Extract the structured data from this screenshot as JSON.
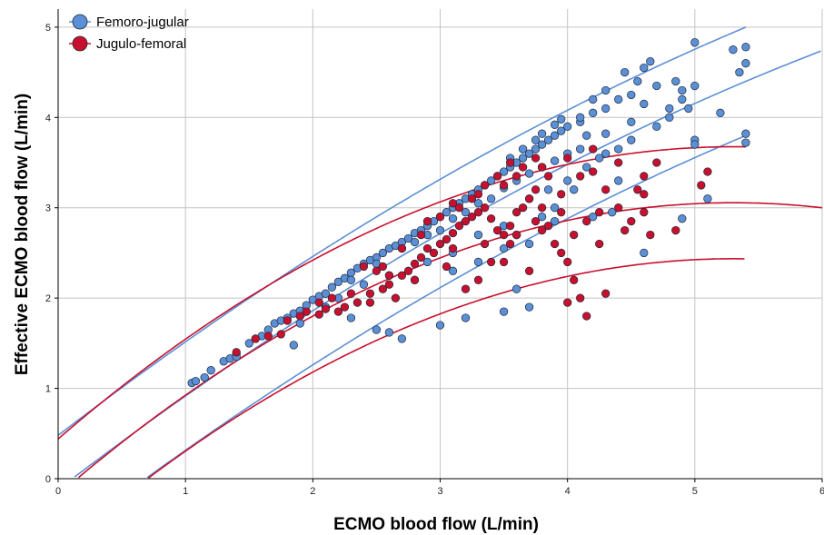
{
  "chart_data": {
    "type": "scatter",
    "xlabel": "ECMO blood flow (L/min)",
    "ylabel": "Effective ECMO blood flow (L/min)",
    "xlim": [
      0,
      6
    ],
    "ylim": [
      0,
      5.2
    ],
    "x_ticks": [
      "0",
      "1",
      "2",
      "3",
      "4",
      "5",
      "6"
    ],
    "y_ticks": [
      "0",
      "1",
      "2",
      "3",
      "4",
      "5"
    ],
    "grid": true,
    "legend_position": "top-left",
    "series": [
      {
        "name": "Femoro-jugular",
        "color": "#5B8FD6",
        "points": [
          [
            1.05,
            1.06
          ],
          [
            1.08,
            1.08
          ],
          [
            1.15,
            1.12
          ],
          [
            1.2,
            1.2
          ],
          [
            1.3,
            1.3
          ],
          [
            1.35,
            1.33
          ],
          [
            1.4,
            1.38
          ],
          [
            1.5,
            1.5
          ],
          [
            1.55,
            1.55
          ],
          [
            1.6,
            1.58
          ],
          [
            1.65,
            1.65
          ],
          [
            1.7,
            1.72
          ],
          [
            1.75,
            1.75
          ],
          [
            1.8,
            1.78
          ],
          [
            1.85,
            1.83
          ],
          [
            1.9,
            1.86
          ],
          [
            1.95,
            1.92
          ],
          [
            2.0,
            1.98
          ],
          [
            2.05,
            2.02
          ],
          [
            2.1,
            2.05
          ],
          [
            2.15,
            2.12
          ],
          [
            2.2,
            2.18
          ],
          [
            2.25,
            2.22
          ],
          [
            2.3,
            2.28
          ],
          [
            2.35,
            2.33
          ],
          [
            2.4,
            2.38
          ],
          [
            2.45,
            2.42
          ],
          [
            2.5,
            2.45
          ],
          [
            2.55,
            2.5
          ],
          [
            2.6,
            2.55
          ],
          [
            2.65,
            2.58
          ],
          [
            2.7,
            2.62
          ],
          [
            2.75,
            2.66
          ],
          [
            2.8,
            2.72
          ],
          [
            2.85,
            2.75
          ],
          [
            2.9,
            2.8
          ],
          [
            2.95,
            2.85
          ],
          [
            3.0,
            2.9
          ],
          [
            3.05,
            2.95
          ],
          [
            3.1,
            3.0
          ],
          [
            3.15,
            3.05
          ],
          [
            3.2,
            3.1
          ],
          [
            3.25,
            3.15
          ],
          [
            3.3,
            3.2
          ],
          [
            3.35,
            3.25
          ],
          [
            3.4,
            3.3
          ],
          [
            3.45,
            3.35
          ],
          [
            3.5,
            3.4
          ],
          [
            3.55,
            3.45
          ],
          [
            3.6,
            3.5
          ],
          [
            3.65,
            3.55
          ],
          [
            3.7,
            3.6
          ],
          [
            3.75,
            3.65
          ],
          [
            3.8,
            3.7
          ],
          [
            3.85,
            3.75
          ],
          [
            3.9,
            3.8
          ],
          [
            3.95,
            3.85
          ],
          [
            4.0,
            3.9
          ],
          [
            4.1,
            3.95
          ],
          [
            4.2,
            4.05
          ],
          [
            4.3,
            4.1
          ],
          [
            4.4,
            4.2
          ],
          [
            4.5,
            4.25
          ],
          [
            4.55,
            4.4
          ],
          [
            4.6,
            4.55
          ],
          [
            4.65,
            4.62
          ],
          [
            4.8,
            4.1
          ],
          [
            4.9,
            4.3
          ],
          [
            5.0,
            4.83
          ],
          [
            5.0,
            4.35
          ],
          [
            5.0,
            3.75
          ],
          [
            5.0,
            3.7
          ],
          [
            5.2,
            4.05
          ],
          [
            5.3,
            4.75
          ],
          [
            5.4,
            4.78
          ],
          [
            5.4,
            4.6
          ],
          [
            5.35,
            4.5
          ],
          [
            5.4,
            3.82
          ],
          [
            5.4,
            3.72
          ],
          [
            5.1,
            3.1
          ],
          [
            4.9,
            2.88
          ],
          [
            4.6,
            2.5
          ],
          [
            4.4,
            3.3
          ],
          [
            4.3,
            3.6
          ],
          [
            4.15,
            3.45
          ],
          [
            4.05,
            3.2
          ],
          [
            3.9,
            3.0
          ],
          [
            3.8,
            2.9
          ],
          [
            3.7,
            2.6
          ],
          [
            3.6,
            2.1
          ],
          [
            3.5,
            1.85
          ],
          [
            3.7,
            1.9
          ],
          [
            3.2,
            1.78
          ],
          [
            3.0,
            1.7
          ],
          [
            2.7,
            1.55
          ],
          [
            2.6,
            1.62
          ],
          [
            2.5,
            1.65
          ],
          [
            2.3,
            1.78
          ],
          [
            2.1,
            1.9
          ],
          [
            1.9,
            1.72
          ],
          [
            1.85,
            1.48
          ],
          [
            1.4,
            1.35
          ],
          [
            2.8,
            2.2
          ],
          [
            3.1,
            2.3
          ],
          [
            3.3,
            2.4
          ],
          [
            3.5,
            2.55
          ],
          [
            3.6,
            2.7
          ],
          [
            3.9,
            2.85
          ],
          [
            4.2,
            2.9
          ],
          [
            4.35,
            2.95
          ],
          [
            2.2,
            2.0
          ],
          [
            2.4,
            2.15
          ],
          [
            2.6,
            2.25
          ],
          [
            2.9,
            2.4
          ],
          [
            3.1,
            2.5
          ],
          [
            3.3,
            2.7
          ],
          [
            3.5,
            2.8
          ],
          [
            3.7,
            3.1
          ],
          [
            3.85,
            3.2
          ],
          [
            4.0,
            3.3
          ],
          [
            4.25,
            3.55
          ],
          [
            4.4,
            3.65
          ],
          [
            4.5,
            3.75
          ],
          [
            4.7,
            3.9
          ],
          [
            4.8,
            4.0
          ],
          [
            4.95,
            4.1
          ],
          [
            4.6,
            4.15
          ],
          [
            4.7,
            4.35
          ],
          [
            4.85,
            4.4
          ],
          [
            4.9,
            4.2
          ],
          [
            2.3,
            2.2
          ],
          [
            2.5,
            2.38
          ],
          [
            2.7,
            2.55
          ],
          [
            2.9,
            2.7
          ],
          [
            3.1,
            2.88
          ],
          [
            3.3,
            3.05
          ],
          [
            3.5,
            3.22
          ],
          [
            3.7,
            3.38
          ],
          [
            3.9,
            3.52
          ],
          [
            4.1,
            3.65
          ],
          [
            4.3,
            3.82
          ],
          [
            4.5,
            3.95
          ],
          [
            4.15,
            3.8
          ],
          [
            4.0,
            3.6
          ],
          [
            3.8,
            3.45
          ],
          [
            3.6,
            3.3
          ],
          [
            3.4,
            3.1
          ],
          [
            3.2,
            2.95
          ],
          [
            3.0,
            2.75
          ],
          [
            2.8,
            2.62
          ],
          [
            4.45,
            4.5
          ],
          [
            4.3,
            4.3
          ],
          [
            4.2,
            4.2
          ],
          [
            4.1,
            4.0
          ],
          [
            3.95,
            3.98
          ],
          [
            3.9,
            3.92
          ],
          [
            3.8,
            3.82
          ],
          [
            3.75,
            3.75
          ],
          [
            3.65,
            3.65
          ],
          [
            3.55,
            3.55
          ]
        ]
      },
      {
        "name": "Jugulo-femoral",
        "color": "#C8102E",
        "points": [
          [
            1.4,
            1.4
          ],
          [
            1.55,
            1.55
          ],
          [
            1.65,
            1.58
          ],
          [
            1.75,
            1.6
          ],
          [
            1.8,
            1.75
          ],
          [
            1.9,
            1.8
          ],
          [
            1.95,
            1.85
          ],
          [
            2.05,
            1.82
          ],
          [
            2.1,
            1.88
          ],
          [
            2.2,
            1.85
          ],
          [
            2.25,
            1.9
          ],
          [
            2.35,
            1.95
          ],
          [
            2.45,
            2.05
          ],
          [
            2.55,
            2.1
          ],
          [
            2.65,
            2.0
          ],
          [
            2.7,
            2.25
          ],
          [
            2.75,
            2.3
          ],
          [
            2.8,
            2.38
          ],
          [
            2.85,
            2.45
          ],
          [
            2.9,
            2.55
          ],
          [
            2.95,
            2.5
          ],
          [
            3.0,
            2.6
          ],
          [
            3.05,
            2.65
          ],
          [
            3.1,
            2.72
          ],
          [
            3.15,
            2.8
          ],
          [
            3.2,
            2.85
          ],
          [
            3.25,
            2.9
          ],
          [
            3.3,
            2.95
          ],
          [
            3.35,
            3.0
          ],
          [
            3.4,
            2.88
          ],
          [
            3.45,
            2.75
          ],
          [
            3.5,
            2.7
          ],
          [
            3.55,
            2.8
          ],
          [
            3.6,
            2.95
          ],
          [
            3.65,
            3.0
          ],
          [
            3.7,
            3.1
          ],
          [
            3.75,
            3.2
          ],
          [
            3.8,
            3.0
          ],
          [
            3.85,
            2.8
          ],
          [
            3.9,
            2.6
          ],
          [
            3.95,
            2.5
          ],
          [
            4.0,
            2.4
          ],
          [
            4.05,
            2.2
          ],
          [
            4.1,
            2.0
          ],
          [
            4.15,
            1.8
          ],
          [
            4.3,
            2.05
          ],
          [
            4.0,
            1.95
          ],
          [
            3.7,
            2.3
          ],
          [
            3.5,
            2.4
          ],
          [
            3.3,
            2.2
          ],
          [
            3.2,
            2.1
          ],
          [
            3.05,
            2.35
          ],
          [
            2.8,
            2.2
          ],
          [
            2.6,
            2.25
          ],
          [
            2.5,
            2.3
          ],
          [
            2.4,
            2.35
          ],
          [
            3.1,
            3.05
          ],
          [
            3.3,
            3.15
          ],
          [
            3.5,
            3.25
          ],
          [
            3.6,
            3.35
          ],
          [
            3.8,
            3.45
          ],
          [
            4.0,
            3.55
          ],
          [
            4.2,
            3.4
          ],
          [
            4.3,
            3.2
          ],
          [
            4.4,
            3.0
          ],
          [
            4.5,
            2.85
          ],
          [
            4.6,
            2.95
          ],
          [
            4.65,
            2.7
          ],
          [
            4.85,
            2.75
          ],
          [
            5.05,
            3.25
          ],
          [
            5.1,
            3.4
          ],
          [
            4.7,
            3.5
          ],
          [
            4.6,
            3.35
          ],
          [
            4.55,
            3.2
          ],
          [
            4.4,
            3.5
          ],
          [
            4.2,
            3.65
          ],
          [
            4.1,
            3.35
          ],
          [
            3.95,
            3.15
          ],
          [
            3.85,
            3.35
          ],
          [
            3.75,
            3.55
          ],
          [
            3.65,
            3.45
          ],
          [
            3.55,
            3.5
          ],
          [
            3.45,
            3.35
          ],
          [
            3.35,
            3.25
          ],
          [
            3.25,
            3.1
          ],
          [
            3.15,
            3.0
          ],
          [
            3.0,
            2.9
          ],
          [
            2.85,
            2.7
          ],
          [
            2.7,
            2.55
          ],
          [
            2.55,
            2.35
          ],
          [
            2.9,
            2.85
          ],
          [
            3.1,
            2.55
          ],
          [
            3.35,
            2.6
          ],
          [
            3.55,
            2.6
          ],
          [
            3.75,
            2.85
          ],
          [
            3.95,
            2.95
          ],
          [
            4.15,
            2.85
          ],
          [
            4.25,
            2.6
          ],
          [
            4.45,
            2.75
          ],
          [
            4.6,
            3.15
          ],
          [
            2.05,
            1.95
          ],
          [
            2.15,
            2.0
          ],
          [
            2.3,
            2.05
          ],
          [
            2.45,
            1.95
          ],
          [
            2.6,
            2.15
          ],
          [
            3.4,
            2.4
          ],
          [
            3.6,
            2.7
          ],
          [
            3.8,
            2.75
          ],
          [
            4.05,
            2.7
          ],
          [
            4.25,
            2.95
          ]
        ]
      }
    ],
    "curves": [
      {
        "series": "Femoro-jugular",
        "role": "upper",
        "coef": [
          0.48,
          1.08,
          -0.045
        ],
        "x_range": [
          0,
          5.4
        ]
      },
      {
        "series": "Femoro-jugular",
        "role": "mean",
        "coef": [
          -0.12,
          1.08,
          -0.045
        ],
        "x_range": [
          0.05,
          6
        ]
      },
      {
        "series": "Femoro-jugular",
        "role": "lower",
        "coef": [
          -0.72,
          1.08,
          -0.045
        ],
        "x_range": [
          0.6,
          5.4
        ]
      },
      {
        "series": "Jugulo-femoral",
        "role": "upper",
        "coef": [
          0.44,
          1.22,
          -0.115
        ],
        "x_range": [
          0,
          5.4
        ]
      },
      {
        "series": "Jugulo-femoral",
        "role": "mean",
        "coef": [
          -0.18,
          1.22,
          -0.115
        ],
        "x_range": [
          0.12,
          6
        ]
      },
      {
        "series": "Jugulo-femoral",
        "role": "lower",
        "coef": [
          -0.8,
          1.22,
          -0.115
        ],
        "x_range": [
          0.65,
          5.4
        ]
      }
    ]
  }
}
